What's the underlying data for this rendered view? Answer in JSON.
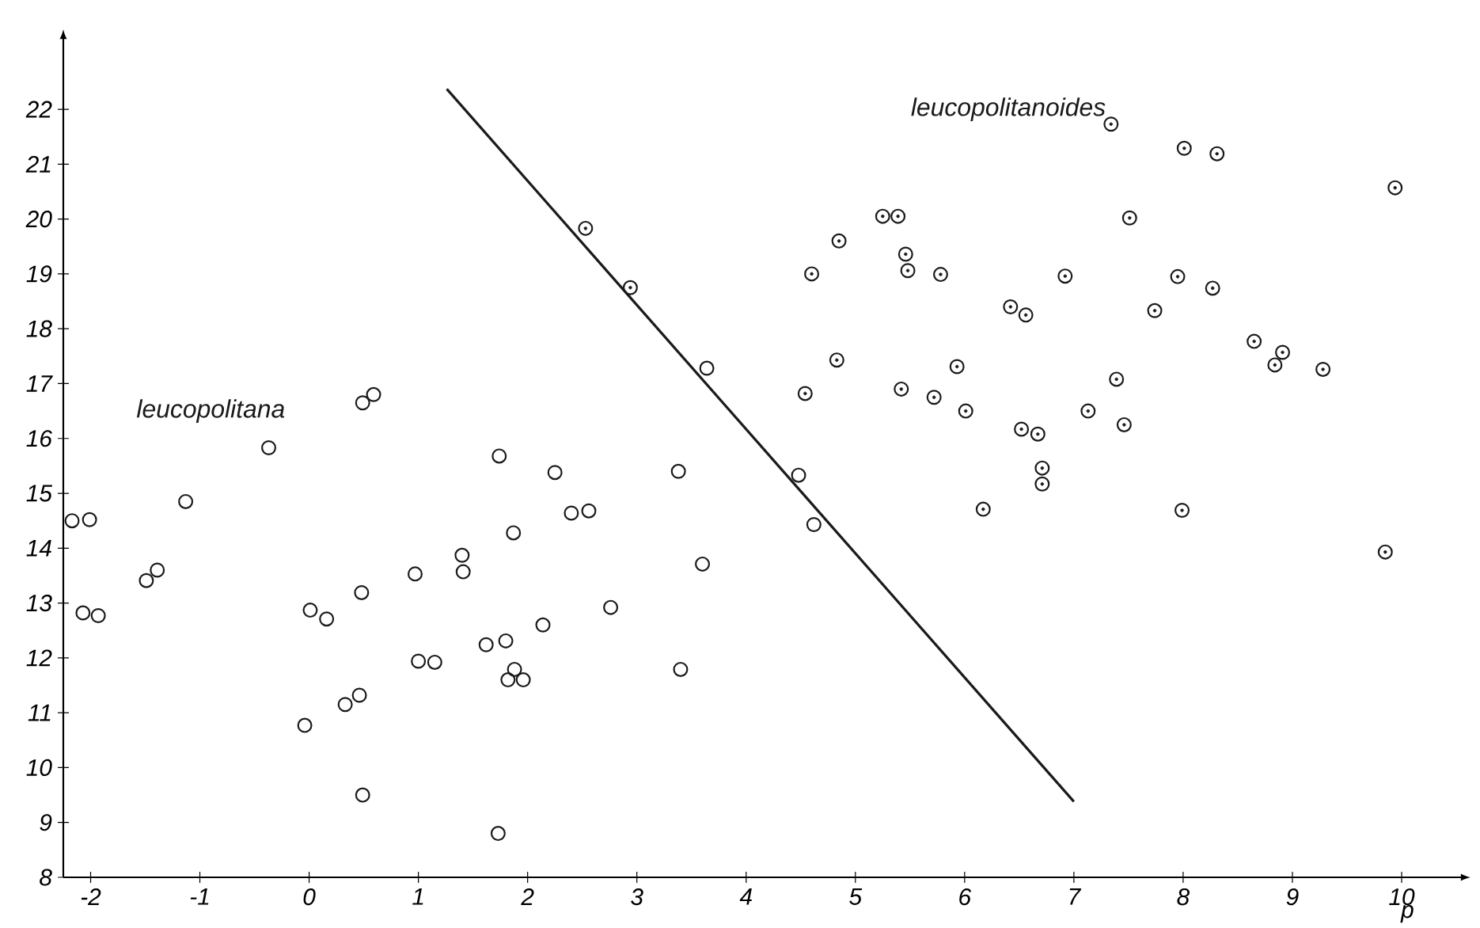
{
  "chart_data": {
    "type": "scatter",
    "xlabel": "p",
    "xlim": [
      -2.25,
      10.5
    ],
    "ylim": [
      8,
      23.3
    ],
    "xticks": [
      -2,
      -1,
      0,
      1,
      2,
      3,
      4,
      5,
      6,
      7,
      8,
      9,
      10
    ],
    "yticks": [
      8,
      9,
      10,
      11,
      12,
      13,
      14,
      15,
      16,
      17,
      18,
      19,
      20,
      21,
      22
    ],
    "grid": false,
    "series": [
      {
        "name": "leucopolitana",
        "color": "#1a1a1a",
        "marker": "circle",
        "x": [
          -2.17,
          -2.01,
          -1.13,
          -1.49,
          -1.39,
          -2.07,
          -1.93,
          0.01,
          0.16,
          -0.04,
          0.33,
          0.46,
          0.48,
          0.49,
          0.97,
          1.0,
          1.15,
          1.4,
          1.41,
          1.62,
          1.8,
          1.73,
          1.82,
          1.88,
          1.96,
          1.87,
          2.14,
          2.25,
          2.4,
          2.56,
          2.76,
          3.38,
          3.4,
          3.6,
          1.74,
          -0.37,
          0.49,
          0.59,
          3.64,
          4.48,
          4.62
        ],
        "values": [
          14.5,
          14.52,
          14.85,
          13.41,
          13.6,
          12.82,
          12.77,
          12.87,
          12.71,
          10.77,
          11.15,
          11.32,
          13.19,
          9.5,
          13.53,
          11.94,
          11.92,
          13.87,
          13.57,
          12.24,
          12.31,
          8.8,
          11.6,
          11.79,
          11.6,
          14.28,
          12.6,
          15.38,
          14.64,
          14.68,
          12.92,
          15.4,
          11.79,
          13.71,
          15.68,
          15.83,
          16.65,
          16.8,
          17.28,
          15.33,
          14.43
        ]
      },
      {
        "name": "leucopolitanoides",
        "color": "#1a1a1a",
        "marker": "circle-dot",
        "x": [
          2.53,
          2.94,
          7.34,
          8.01,
          8.31,
          9.94,
          5.25,
          5.39,
          7.51,
          4.85,
          5.46,
          5.48,
          4.6,
          5.78,
          6.92,
          7.95,
          8.27,
          6.42,
          6.56,
          7.74,
          8.65,
          8.91,
          8.84,
          9.28,
          4.83,
          4.54,
          5.42,
          5.72,
          5.93,
          6.01,
          7.39,
          7.13,
          7.46,
          6.52,
          6.67,
          6.71,
          6.71,
          6.17,
          7.99,
          9.85
        ],
        "values": [
          19.83,
          18.75,
          21.73,
          21.29,
          21.19,
          20.57,
          20.05,
          20.05,
          20.02,
          19.6,
          19.36,
          19.06,
          19.0,
          18.99,
          18.96,
          18.95,
          18.74,
          18.4,
          18.25,
          18.33,
          17.77,
          17.57,
          17.34,
          17.26,
          17.43,
          16.82,
          16.9,
          16.75,
          17.31,
          16.5,
          17.08,
          16.5,
          16.25,
          16.17,
          16.08,
          15.46,
          15.17,
          14.71,
          14.69,
          13.93
        ]
      },
      {
        "type": "line",
        "color": "#1a1a1a",
        "marker": "none",
        "line_style": "solid",
        "x": [
          1.26,
          7.0
        ],
        "values": [
          22.37,
          9.38
        ]
      }
    ]
  }
}
